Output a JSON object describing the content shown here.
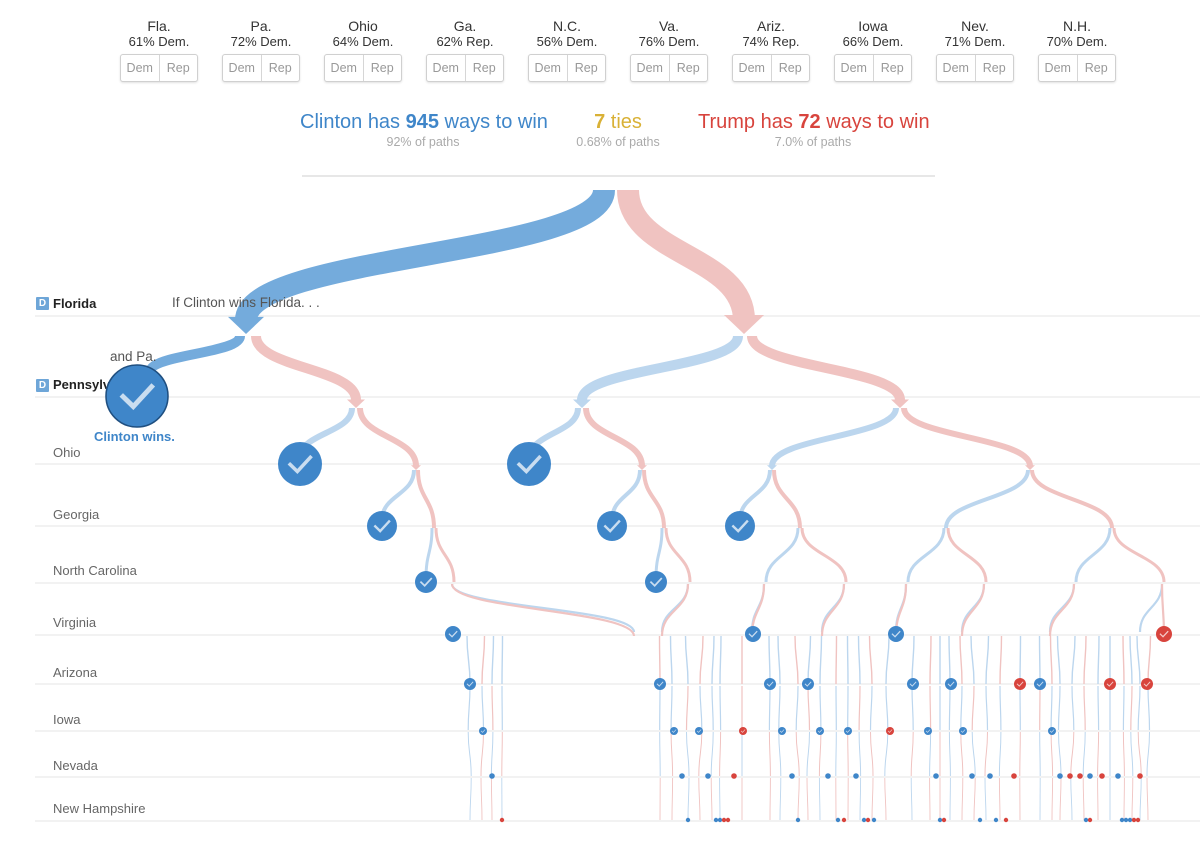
{
  "states": [
    {
      "name": "Fla.",
      "prob": "61% Dem.",
      "dem": "Dem",
      "rep": "Rep"
    },
    {
      "name": "Pa.",
      "prob": "72% Dem.",
      "dem": "Dem",
      "rep": "Rep"
    },
    {
      "name": "Ohio",
      "prob": "64% Dem.",
      "dem": "Dem",
      "rep": "Rep"
    },
    {
      "name": "Ga.",
      "prob": "62% Rep.",
      "dem": "Dem",
      "rep": "Rep"
    },
    {
      "name": "N.C.",
      "prob": "56% Dem.",
      "dem": "Dem",
      "rep": "Rep"
    },
    {
      "name": "Va.",
      "prob": "76% Dem.",
      "dem": "Dem",
      "rep": "Rep"
    },
    {
      "name": "Ariz.",
      "prob": "74% Rep.",
      "dem": "Dem",
      "rep": "Rep"
    },
    {
      "name": "Iowa",
      "prob": "66% Dem.",
      "dem": "Dem",
      "rep": "Rep"
    },
    {
      "name": "Nev.",
      "prob": "71% Dem.",
      "dem": "Dem",
      "rep": "Rep"
    },
    {
      "name": "N.H.",
      "prob": "70% Dem.",
      "dem": "Dem",
      "rep": "Rep"
    }
  ],
  "summary": {
    "clinton_pre": "Clinton has ",
    "clinton_ways": "945",
    "clinton_post": " ways to win",
    "clinton_pct": "92% of paths",
    "ties_num": "7",
    "ties_word": " ties",
    "ties_pct": "0.68% of paths",
    "trump_pre": "Trump has ",
    "trump_ways": "72",
    "trump_post": " ways to win",
    "trump_pct": "7.0% of paths"
  },
  "rows": [
    {
      "label": "Florida",
      "badge": "D"
    },
    {
      "label": "Pennsylvania",
      "badge": "D"
    },
    {
      "label": "Ohio"
    },
    {
      "label": "Georgia"
    },
    {
      "label": "North Carolina"
    },
    {
      "label": "Virginia"
    },
    {
      "label": "Arizona"
    },
    {
      "label": "Iowa"
    },
    {
      "label": "Nevada"
    },
    {
      "label": "New Hampshire"
    }
  ],
  "annotations": {
    "if_florida": "If Clinton wins Florida. . .",
    "and_pa": "and Pa.",
    "clinton_wins": "Clinton wins."
  },
  "colors": {
    "dem": "#3f86c9",
    "dem_light": "#bcd6ee",
    "rep": "#d8443d",
    "rep_light": "#f0c3c1",
    "tie": "#d9b136"
  }
}
